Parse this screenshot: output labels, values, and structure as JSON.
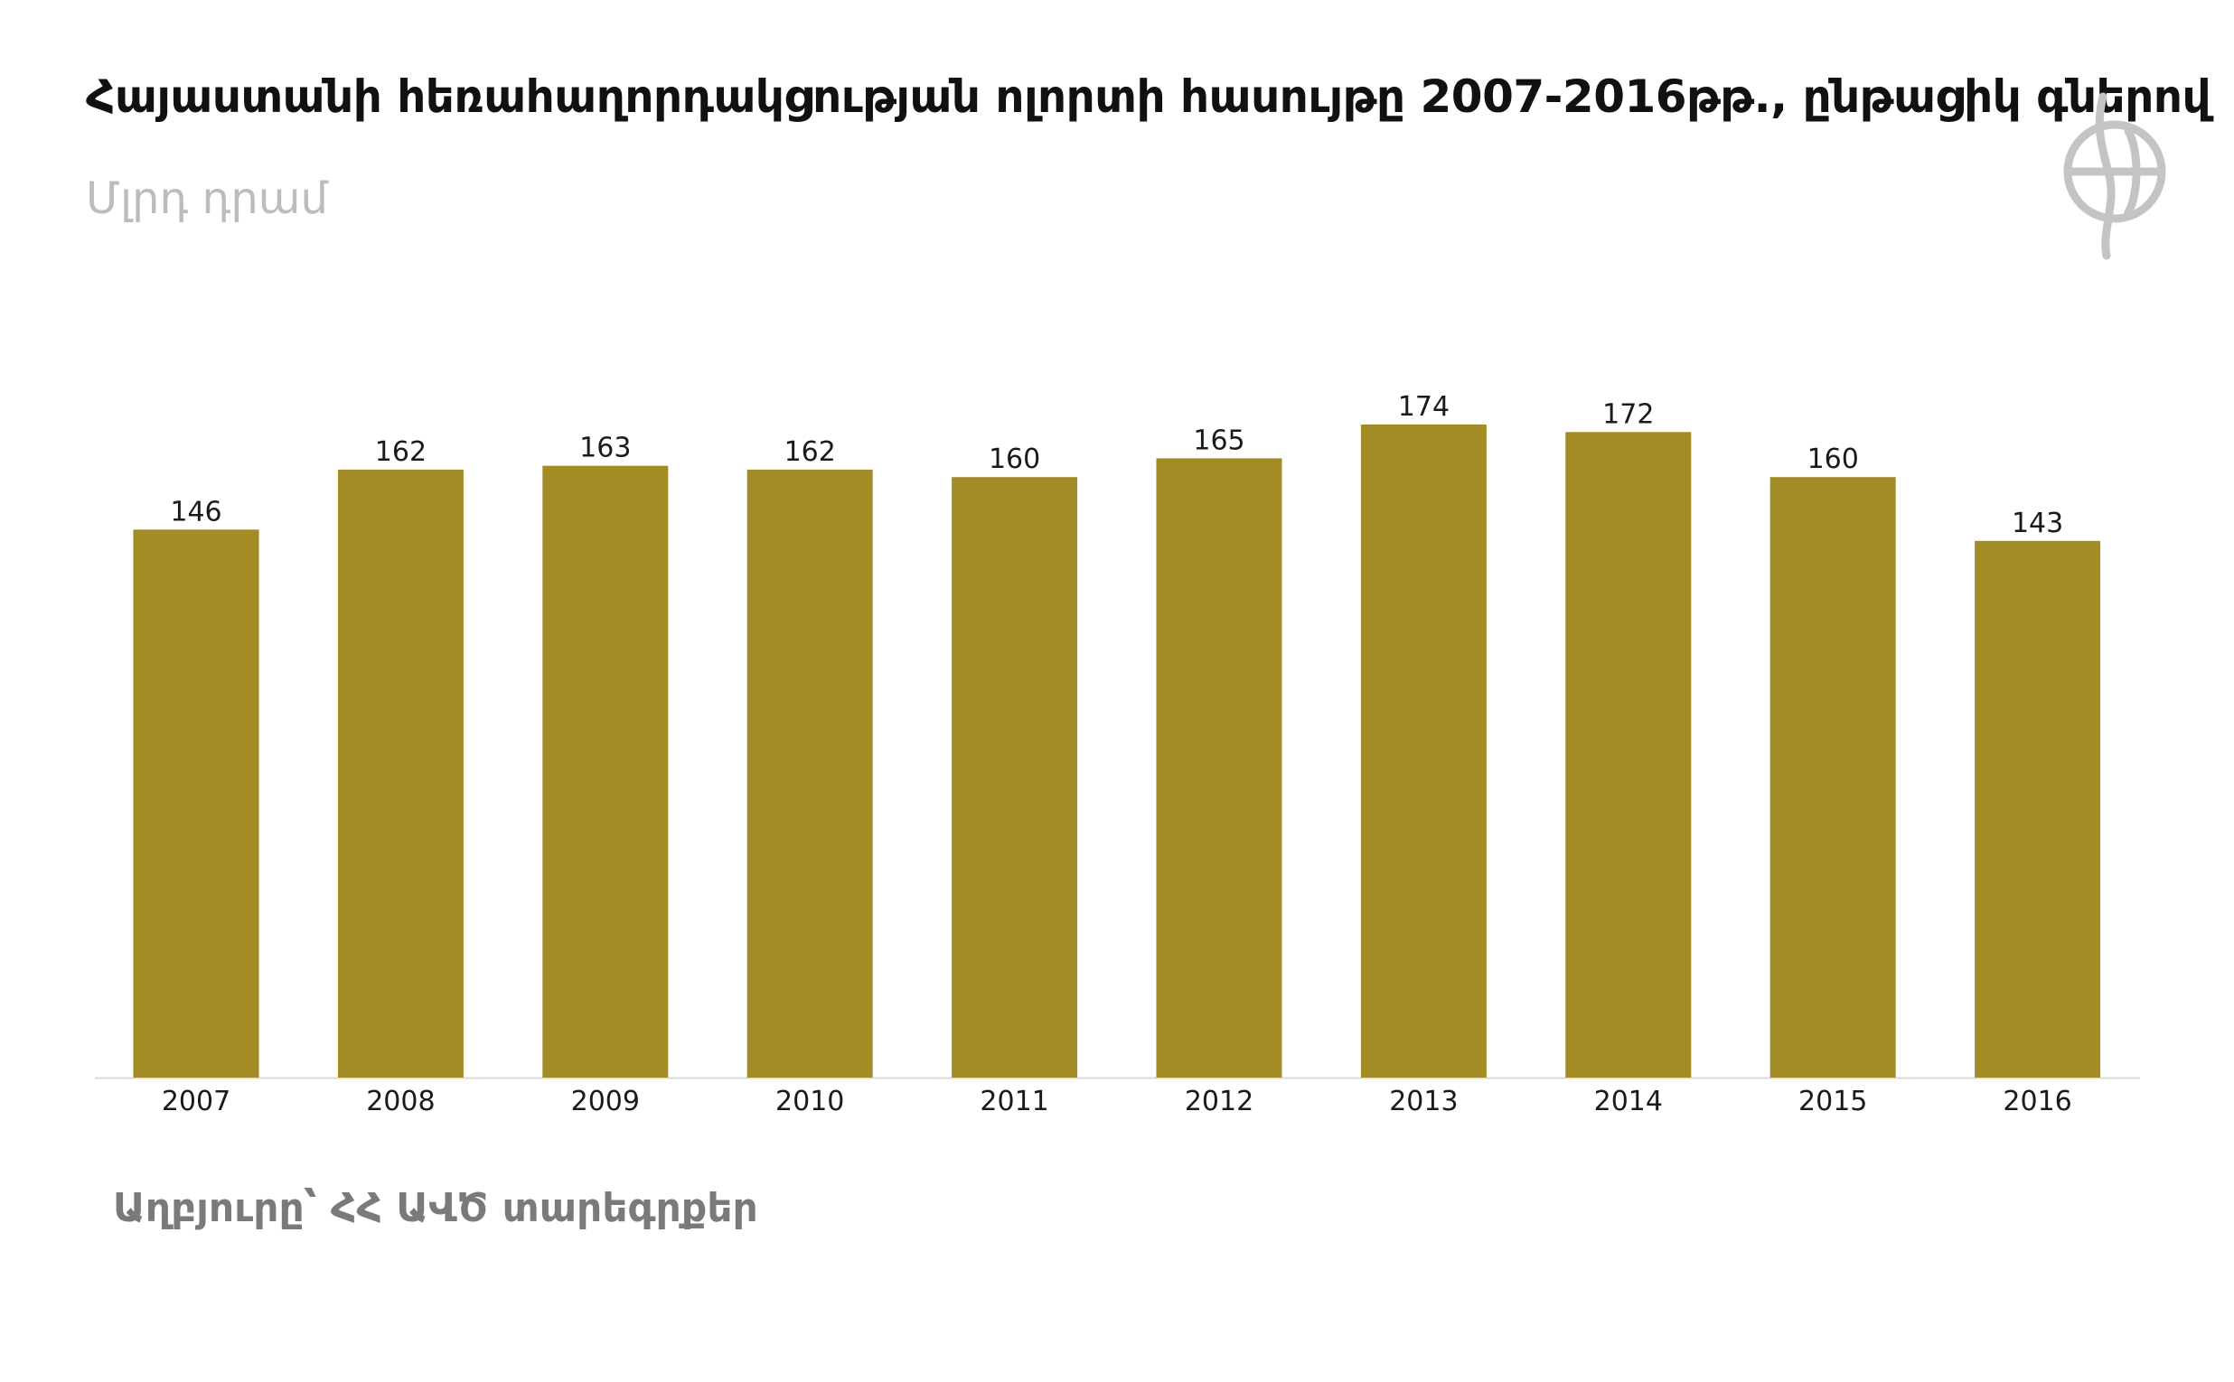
{
  "title": "Հայաստանի հեռահաղորդակցության ոլորտի հասույթը 2007-2016թթ., ընթացիկ գներով",
  "subtitle": "Մլրդ դրամ",
  "source": "Աղբյուրը՝ ՀՀ ԱՎԾ տարեգրքեր",
  "colors": {
    "bar": "#a38c26",
    "axis": "#d9d9d9",
    "logo": "#c4c4c4"
  },
  "logo_icon": "circle-emblem-icon",
  "chart_data": {
    "type": "bar",
    "title": "Հայաստանի հեռահաղորդակցության ոլորտի հասույթը 2007-2016թթ., ընթացիկ գներով",
    "ylabel": "",
    "xlabel": "",
    "categories": [
      "2007",
      "2008",
      "2009",
      "2010",
      "2011",
      "2012",
      "2013",
      "2014",
      "2015",
      "2016"
    ],
    "values": [
      146,
      162,
      163,
      162,
      160,
      165,
      174,
      172,
      160,
      143
    ],
    "data_labels": [
      "146",
      "162",
      "163",
      "162",
      "160",
      "165",
      "174",
      "172",
      "160",
      "143"
    ],
    "ylim": [
      0,
      174
    ],
    "grid": false,
    "legend": "none"
  }
}
